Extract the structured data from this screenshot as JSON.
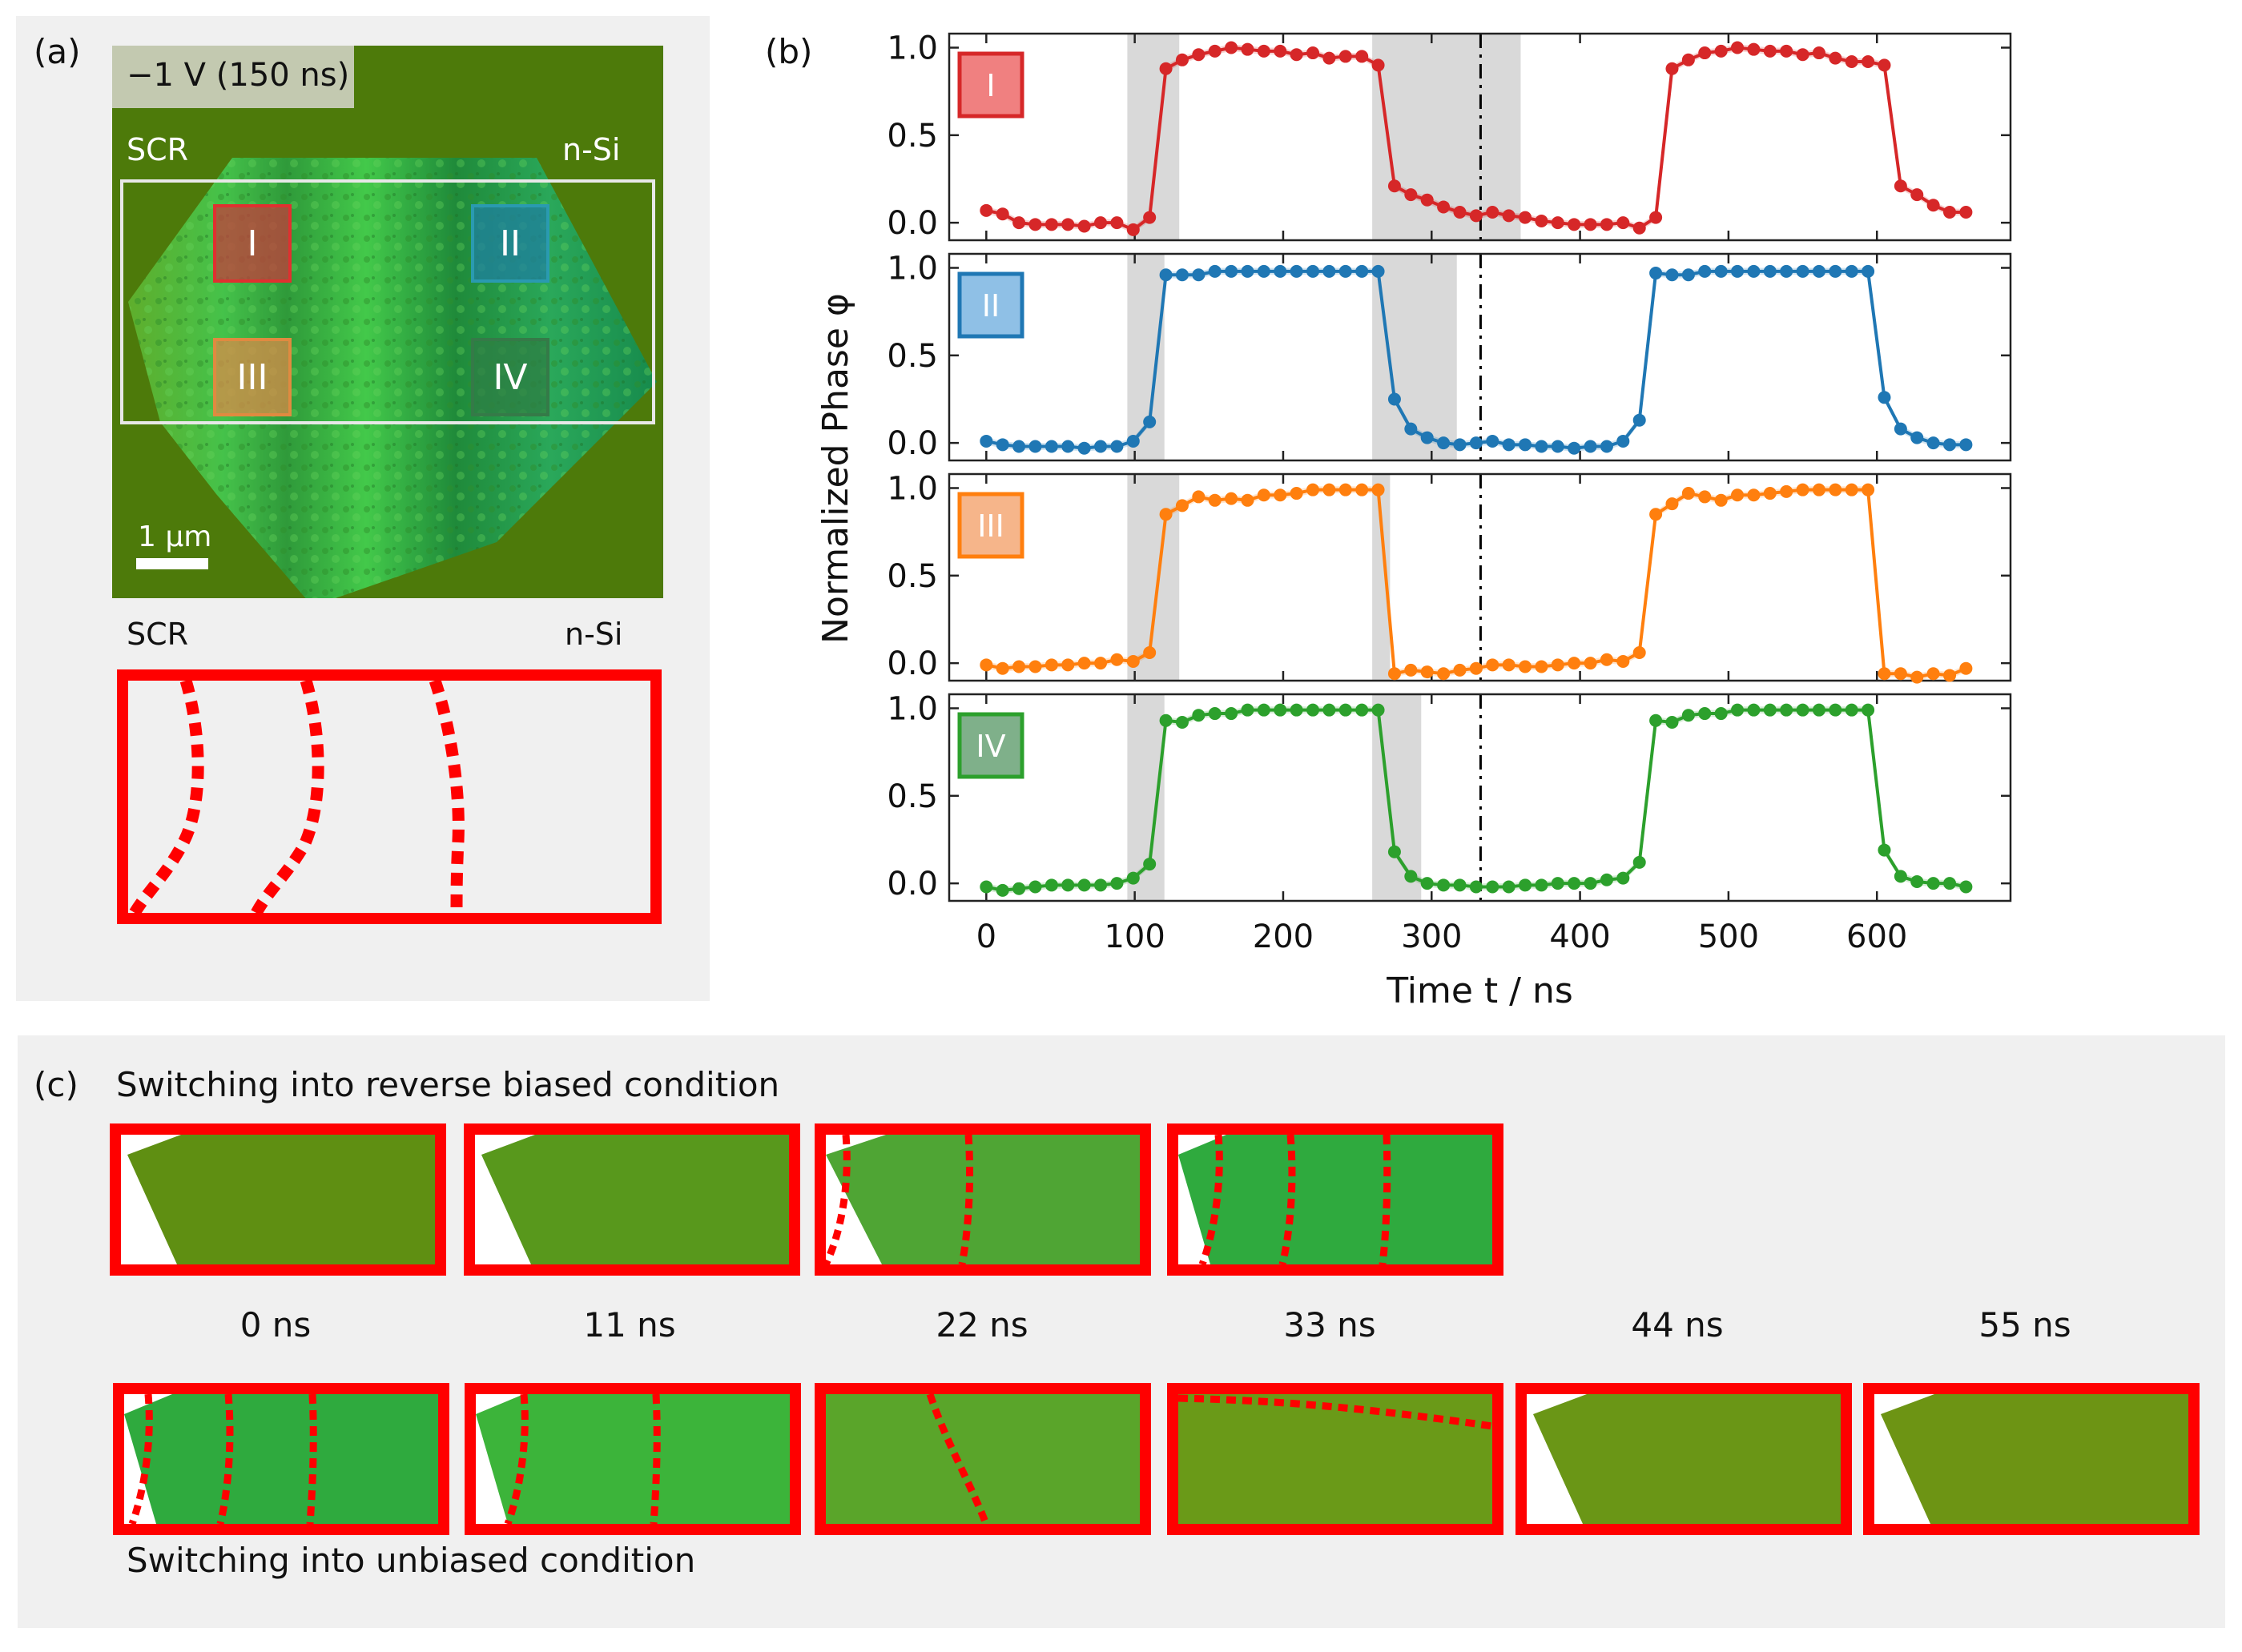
{
  "panel_a": {
    "label": "(a)",
    "bias_text": "−1 V (150 ns)",
    "scr_label": "SCR",
    "nsi_label": "n-Si",
    "scale_label": "1 µm",
    "lower_scr_label": "SCR",
    "lower_nsi_label": "n-Si",
    "regions": [
      {
        "label": "I",
        "color": "#c43c3c"
      },
      {
        "label": "II",
        "color": "#1f7fa0"
      },
      {
        "label": "III",
        "color": "#d98b4a"
      },
      {
        "label": "IV",
        "color": "#2e7d44"
      }
    ]
  },
  "panel_b": {
    "label": "(b)"
  },
  "panel_c": {
    "label": "(c)",
    "top_title": "Switching into reverse biased condition",
    "bottom_title": "Switching into unbiased condition",
    "time_labels": [
      "0 ns",
      "11 ns",
      "22 ns",
      "33 ns",
      "44 ns",
      "55 ns"
    ]
  },
  "colors": {
    "red": "#d62728",
    "blue": "#1f77b4",
    "orange": "#ff7f0e",
    "green": "#2ca02c",
    "shade": "#d9d9d9"
  },
  "chart_data": {
    "type": "line",
    "ylabel": "Normalized Phase φ",
    "xlabel": "Time t / ns",
    "xlim": [
      -25,
      690
    ],
    "ylim": [
      -0.1,
      1.08
    ],
    "xticks": [
      0,
      100,
      200,
      300,
      400,
      500,
      600
    ],
    "yticks": [
      0.0,
      0.5,
      1.0
    ],
    "vline_x": 333,
    "x": [
      0,
      11,
      22,
      33,
      44,
      55,
      66,
      77,
      88,
      99,
      110,
      121,
      132,
      143,
      154,
      165,
      176,
      187,
      198,
      209,
      220,
      231,
      242,
      253,
      264,
      275,
      286,
      297,
      308,
      319,
      330,
      341,
      352,
      363,
      374,
      385,
      396,
      407,
      418,
      429,
      440,
      451,
      462,
      473,
      484,
      495,
      506,
      517,
      528,
      539,
      550,
      561,
      572,
      583,
      594,
      605,
      616,
      627,
      638,
      649,
      660
    ],
    "series": [
      {
        "name": "I",
        "color": "#d62728",
        "box_color": "#f08080",
        "shade": [
          [
            95,
            130
          ],
          [
            260,
            360
          ]
        ],
        "values": [
          0.07,
          0.05,
          0.0,
          -0.01,
          -0.01,
          -0.01,
          -0.02,
          0.0,
          0.0,
          -0.04,
          0.03,
          0.88,
          0.93,
          0.96,
          0.98,
          1.0,
          0.99,
          0.98,
          0.98,
          0.96,
          0.97,
          0.94,
          0.95,
          0.95,
          0.9,
          0.21,
          0.16,
          0.13,
          0.09,
          0.06,
          0.04,
          0.06,
          0.04,
          0.03,
          0.01,
          0.0,
          -0.01,
          -0.01,
          -0.01,
          0.0,
          -0.03,
          0.03,
          0.88,
          0.93,
          0.97,
          0.98,
          1.0,
          0.99,
          0.98,
          0.98,
          0.96,
          0.97,
          0.94,
          0.92,
          0.92,
          0.9,
          0.21,
          0.16,
          0.1,
          0.06,
          0.06
        ]
      },
      {
        "name": "II",
        "color": "#1f77b4",
        "box_color": "#8fc0e6",
        "shade": [
          [
            95,
            120
          ],
          [
            260,
            317
          ]
        ],
        "values": [
          0.01,
          -0.01,
          -0.02,
          -0.02,
          -0.02,
          -0.02,
          -0.03,
          -0.02,
          -0.02,
          0.01,
          0.12,
          0.96,
          0.96,
          0.96,
          0.98,
          0.98,
          0.98,
          0.98,
          0.98,
          0.98,
          0.98,
          0.98,
          0.98,
          0.98,
          0.98,
          0.25,
          0.08,
          0.03,
          0.0,
          -0.01,
          0.0,
          0.01,
          -0.01,
          -0.01,
          -0.02,
          -0.02,
          -0.03,
          -0.02,
          -0.02,
          0.01,
          0.13,
          0.97,
          0.96,
          0.96,
          0.98,
          0.98,
          0.98,
          0.98,
          0.98,
          0.98,
          0.98,
          0.98,
          0.98,
          0.98,
          0.98,
          0.26,
          0.08,
          0.03,
          0.0,
          -0.01,
          -0.01
        ]
      },
      {
        "name": "III",
        "color": "#ff7f0e",
        "box_color": "#f6b58a",
        "shade": [
          [
            95,
            130
          ],
          [
            260,
            272
          ]
        ],
        "values": [
          -0.01,
          -0.03,
          -0.02,
          -0.02,
          -0.01,
          -0.01,
          0.0,
          0.0,
          0.02,
          0.01,
          0.06,
          0.85,
          0.9,
          0.95,
          0.93,
          0.94,
          0.93,
          0.96,
          0.96,
          0.97,
          0.99,
          0.99,
          0.99,
          0.99,
          0.99,
          -0.06,
          -0.04,
          -0.05,
          -0.06,
          -0.04,
          -0.03,
          -0.01,
          -0.01,
          -0.02,
          -0.02,
          -0.01,
          0.0,
          0.0,
          0.02,
          0.01,
          0.06,
          0.85,
          0.91,
          0.97,
          0.95,
          0.93,
          0.96,
          0.96,
          0.97,
          0.98,
          0.99,
          0.99,
          0.99,
          0.99,
          0.99,
          -0.06,
          -0.06,
          -0.08,
          -0.06,
          -0.07,
          -0.03
        ]
      },
      {
        "name": "IV",
        "color": "#2ca02c",
        "box_color": "#7fb08a",
        "shade": [
          [
            95,
            120
          ],
          [
            260,
            293
          ]
        ],
        "values": [
          -0.02,
          -0.04,
          -0.03,
          -0.02,
          -0.01,
          -0.01,
          -0.01,
          -0.01,
          0.0,
          0.03,
          0.11,
          0.93,
          0.92,
          0.96,
          0.97,
          0.97,
          0.99,
          0.99,
          0.99,
          0.99,
          0.99,
          0.99,
          0.99,
          0.99,
          0.99,
          0.18,
          0.04,
          0.0,
          -0.01,
          -0.01,
          -0.02,
          -0.02,
          -0.02,
          -0.01,
          -0.01,
          0.0,
          0.0,
          0.0,
          0.02,
          0.03,
          0.12,
          0.93,
          0.92,
          0.96,
          0.97,
          0.97,
          0.99,
          0.99,
          0.99,
          0.99,
          0.99,
          0.99,
          0.99,
          0.99,
          0.99,
          0.19,
          0.04,
          0.01,
          0.0,
          0.0,
          -0.02
        ]
      }
    ]
  }
}
